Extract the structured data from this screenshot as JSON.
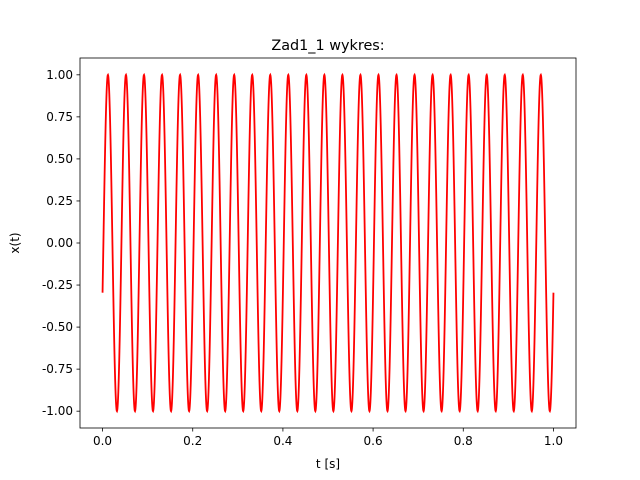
{
  "chart_data": {
    "type": "line",
    "title": "Zad1_1 wykres:",
    "xlabel": "t [s]",
    "ylabel": "x(t)",
    "xlim": [
      -0.05,
      1.05
    ],
    "ylim": [
      -1.1,
      1.1
    ],
    "x_ticks": [
      "0.0",
      "0.2",
      "0.4",
      "0.6",
      "0.8",
      "1.0"
    ],
    "y_ticks": [
      "1.00",
      "0.75",
      "0.50",
      "0.25",
      "0.00",
      "-0.25",
      "-0.50",
      "-0.75",
      "-1.00"
    ],
    "grid": false,
    "series": [
      {
        "color": "#ff0000",
        "function": "sin",
        "amplitude": 1.0,
        "frequency_hz": 25,
        "phase": -0.3,
        "t_start": 0.0,
        "t_end": 1.0
      }
    ]
  }
}
